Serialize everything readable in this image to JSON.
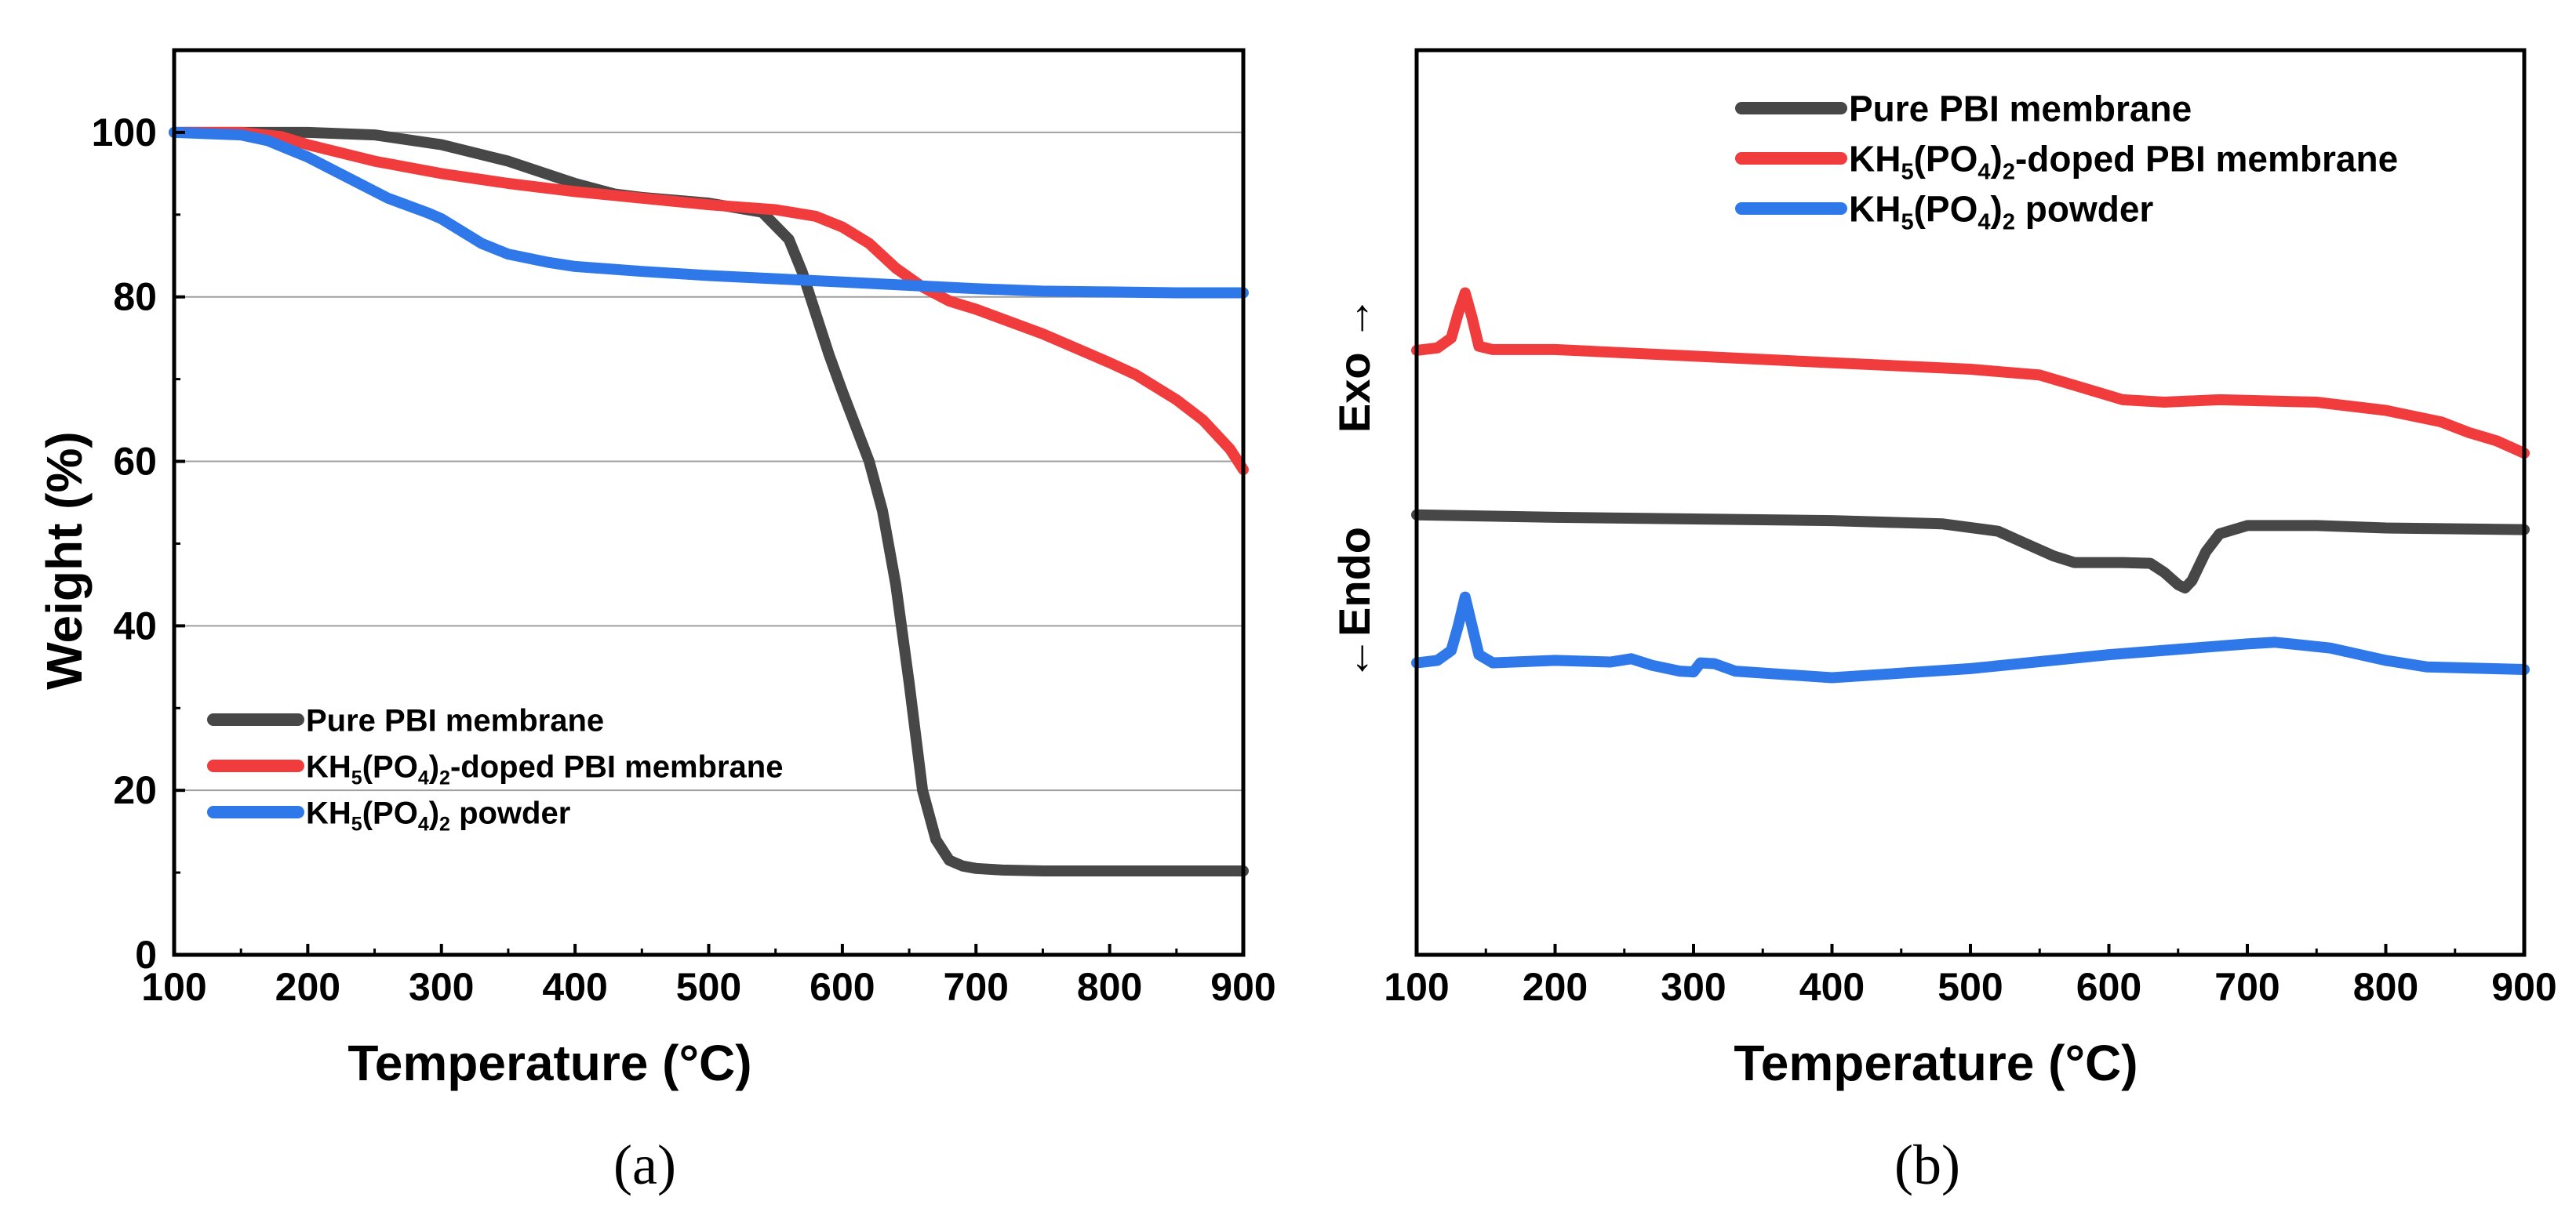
{
  "colors": {
    "pure": "#474747",
    "doped": "#f03c3c",
    "powder": "#2f78ea",
    "grid": "#a0a0a0",
    "axis": "#000000"
  },
  "chart_data": [
    {
      "type": "line",
      "panel_label": "(a)",
      "xlabel": "Temperature (°C)",
      "ylabel": "Weight (%)",
      "xlim": [
        100,
        900
      ],
      "ylim": [
        0,
        110
      ],
      "xticks": [
        100,
        200,
        300,
        400,
        500,
        600,
        700,
        800,
        900
      ],
      "yticks": [
        0,
        20,
        40,
        60,
        80,
        100
      ],
      "grid": "horizontal",
      "legend_position": "lower-left",
      "series": [
        {
          "key": "pure",
          "name": "Pure PBI membrane",
          "legend": {
            "pre": "Pure PBI membrane"
          },
          "x": [
            100,
            150,
            200,
            250,
            300,
            350,
            400,
            430,
            450,
            500,
            540,
            560,
            570,
            580,
            590,
            600,
            620,
            630,
            640,
            650,
            660,
            670,
            680,
            690,
            700,
            720,
            750,
            800,
            900
          ],
          "y": [
            100,
            100,
            100,
            99.7,
            98.5,
            96.5,
            93.8,
            92.5,
            92.1,
            91.4,
            90.3,
            87,
            83,
            78,
            73,
            68.5,
            60,
            54,
            45,
            33,
            20,
            14,
            11.5,
            10.8,
            10.5,
            10.3,
            10.2,
            10.2,
            10.2
          ]
        },
        {
          "key": "doped",
          "name": "KH5(PO4)2-doped PBI membrane",
          "legend": {
            "pre": "KH",
            "sub1": "5",
            "mid": "(PO",
            "sub2": "4",
            "post": ")",
            "sub3": "2",
            "tail": "-doped PBI membrane"
          },
          "x": [
            100,
            150,
            180,
            200,
            250,
            300,
            350,
            400,
            450,
            500,
            550,
            580,
            600,
            620,
            640,
            660,
            680,
            700,
            750,
            800,
            820,
            850,
            870,
            890,
            900
          ],
          "y": [
            100,
            100,
            99.5,
            98.5,
            96.5,
            95,
            93.8,
            92.8,
            92,
            91.2,
            90.6,
            89.8,
            88.5,
            86.5,
            83.5,
            81.2,
            79.5,
            78.5,
            75.5,
            72,
            70.5,
            67.5,
            65,
            61.5,
            59
          ]
        },
        {
          "key": "powder",
          "name": "KH5(PO4)2 powder",
          "legend": {
            "pre": "KH",
            "sub1": "5",
            "mid": "(PO",
            "sub2": "4",
            "post": ")",
            "sub3": "2",
            "tail": " powder"
          },
          "x": [
            100,
            150,
            170,
            200,
            230,
            260,
            290,
            300,
            330,
            350,
            380,
            400,
            450,
            500,
            550,
            600,
            650,
            700,
            750,
            800,
            850,
            900
          ],
          "y": [
            100,
            99.7,
            99,
            97,
            94.5,
            92,
            90.2,
            89.5,
            86.5,
            85.2,
            84.2,
            83.7,
            83.1,
            82.6,
            82.2,
            81.8,
            81.4,
            81,
            80.7,
            80.6,
            80.5,
            80.5
          ]
        }
      ]
    },
    {
      "type": "line",
      "panel_label": "(b)",
      "xlabel": "Temperature (°C)",
      "ylabel_exo": "Exo →",
      "ylabel_endo": "←Endo",
      "xlim": [
        100,
        900
      ],
      "ylim": [
        0,
        110
      ],
      "xticks": [
        100,
        200,
        300,
        400,
        500,
        600,
        700,
        800,
        900
      ],
      "grid": "none",
      "legend_position": "top-center",
      "series": [
        {
          "key": "pure",
          "name": "Pure PBI membrane",
          "legend": {
            "pre": "Pure PBI membrane"
          },
          "x": [
            100,
            200,
            300,
            400,
            480,
            520,
            540,
            560,
            575,
            590,
            610,
            630,
            640,
            650,
            655,
            660,
            670,
            680,
            700,
            750,
            800,
            900
          ],
          "y": [
            53.5,
            53.2,
            53.0,
            52.8,
            52.4,
            51.5,
            50,
            48.5,
            47.7,
            47.7,
            47.7,
            47.6,
            46.5,
            45,
            44.6,
            45.5,
            49,
            51.2,
            52.2,
            52.2,
            51.9,
            51.7
          ]
        },
        {
          "key": "doped",
          "name": "KH5(PO4)2-doped PBI membrane",
          "legend": {
            "pre": "KH",
            "sub1": "5",
            "mid": "(PO",
            "sub2": "4",
            "post": ")",
            "sub3": "2",
            "tail": "-doped PBI membrane"
          },
          "x": [
            100,
            115,
            125,
            130,
            135,
            140,
            145,
            155,
            200,
            300,
            400,
            500,
            550,
            580,
            610,
            640,
            680,
            750,
            800,
            840,
            860,
            880,
            900
          ],
          "y": [
            73.5,
            73.8,
            75,
            78,
            80.5,
            77.5,
            74,
            73.6,
            73.6,
            72.8,
            72,
            71.2,
            70.5,
            69,
            67.5,
            67.2,
            67.5,
            67.2,
            66.2,
            64.8,
            63.5,
            62.5,
            61
          ]
        },
        {
          "key": "powder",
          "name": "KH5(PO4)2 powder",
          "legend": {
            "pre": "KH",
            "sub1": "5",
            "mid": "(PO",
            "sub2": "4",
            "post": ")",
            "sub3": "2",
            "tail": " powder"
          },
          "x": [
            100,
            115,
            125,
            130,
            135,
            140,
            145,
            155,
            200,
            240,
            255,
            270,
            290,
            300,
            305,
            315,
            330,
            400,
            500,
            600,
            700,
            720,
            760,
            800,
            830,
            900
          ],
          "y": [
            35.5,
            35.8,
            37,
            40,
            43.5,
            40,
            36.5,
            35.5,
            35.8,
            35.6,
            36,
            35.2,
            34.5,
            34.4,
            35.5,
            35.4,
            34.5,
            33.7,
            34.8,
            36.5,
            37.8,
            38,
            37.3,
            35.8,
            35.0,
            34.7
          ]
        }
      ]
    }
  ]
}
